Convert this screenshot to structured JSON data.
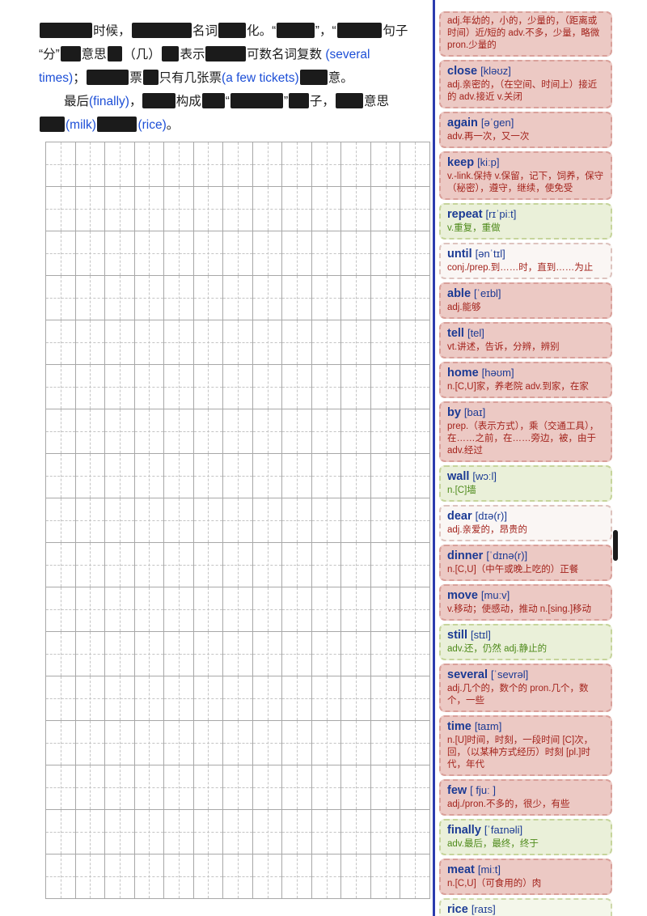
{
  "left": {
    "paragraph_lines": [
      [
        {
          "w": 4.2
        },
        {
          "t": "时候，"
        },
        {
          "w": 4.8
        },
        {
          "t": "名词"
        },
        {
          "w": 2.2
        },
        {
          "t": "化。“"
        },
        {
          "w": 3.0
        },
        {
          "t": "”，“"
        },
        {
          "w": 3.6
        },
        {
          "t": "句子"
        }
      ],
      [
        {
          "t": "“分”"
        },
        {
          "w": 1.6
        },
        {
          "t": "意思"
        },
        {
          "w": 1.2
        },
        {
          "t": "（几）"
        },
        {
          "w": 1.4
        },
        {
          "t": "表示"
        },
        {
          "w": 3.2
        },
        {
          "t": "可数名词复数 "
        },
        {
          "t": "(several",
          "s": "en"
        }
      ],
      [
        {
          "t": "times)",
          "s": "en"
        },
        {
          "t": "；"
        },
        {
          "w": 3.4
        },
        {
          "t": "票"
        },
        {
          "w": 1.2
        },
        {
          "t": "只有几张票"
        },
        {
          "t": "(a few tickets)",
          "s": "en"
        },
        {
          "w": 2.2
        },
        {
          "t": "意。"
        }
      ],
      [
        {
          "t": "　　最后"
        },
        {
          "t": "(finally)",
          "s": "en"
        },
        {
          "t": "，"
        },
        {
          "w": 2.6
        },
        {
          "t": "构成"
        },
        {
          "w": 1.8
        },
        {
          "t": "“"
        },
        {
          "w": 4.2
        },
        {
          "t": "”"
        },
        {
          "w": 1.6
        },
        {
          "t": "子，"
        },
        {
          "w": 2.2
        },
        {
          "t": "意思"
        }
      ],
      [
        {
          "w": 2.0
        },
        {
          "t": "(milk)",
          "s": "en"
        },
        {
          "w": 3.2
        },
        {
          "t": "(rice)",
          "s": "en"
        },
        {
          "t": "。"
        }
      ]
    ],
    "grid": {
      "rows": 17,
      "cols": 13
    }
  },
  "vocab": {
    "cards": [
      {
        "word": "",
        "phonetic": "",
        "definition": "adj.年幼的，小的，少量的，（距离或时间）近/短的 adv.不多，少量，略微 pron.少量的",
        "theme": "pink"
      },
      {
        "word": "close",
        "phonetic": "[kləʊz]",
        "definition": "adj.亲密的，（在空间、时间上）接近的 adv.接近 v.关闭",
        "theme": "pink"
      },
      {
        "word": "again",
        "phonetic": "[əˈgen]",
        "definition": "adv.再一次，又一次",
        "theme": "pink"
      },
      {
        "word": "keep",
        "phonetic": "[kiːp]",
        "definition": "v.-link.保持 v.保留，记下，饲养，保守（秘密），遵守，继续，使免受",
        "theme": "pink"
      },
      {
        "word": "repeat",
        "phonetic": "[rɪˈpiːt]",
        "definition": "v.重复，重做",
        "theme": "green"
      },
      {
        "word": "until",
        "phonetic": "[ənˈtɪl]",
        "definition": "conj./prep.到……时，直到……为止",
        "theme": "white"
      },
      {
        "word": "able",
        "phonetic": "[ˈeɪbl]",
        "definition": "adj.能够",
        "theme": "pink"
      },
      {
        "word": "tell",
        "phonetic": "[tel]",
        "definition": "vt.讲述，告诉，分辨，辨别",
        "theme": "pink"
      },
      {
        "word": "home",
        "phonetic": "[həʊm]",
        "definition": "n.[C,U]家，养老院 adv.到家，在家",
        "theme": "pink"
      },
      {
        "word": "by",
        "phonetic": "[baɪ]",
        "definition": "prep.（表示方式），乘（交通工具），在……之前，在……旁边，被，由于 adv.经过",
        "theme": "pink"
      },
      {
        "word": "wall",
        "phonetic": "[wɔːl]",
        "definition": "n.[C]墙",
        "theme": "green"
      },
      {
        "word": "dear",
        "phonetic": "[dɪə(r)]",
        "definition": "adj.亲爱的，昂贵的",
        "theme": "white"
      },
      {
        "word": "dinner",
        "phonetic": "[ˈdɪnə(r)]",
        "definition": "n.[C,U]（中午或晚上吃的）正餐",
        "theme": "pink"
      },
      {
        "word": "move",
        "phonetic": "[muːv]",
        "definition": "v.移动；使感动，推动 n.[sing.]移动",
        "theme": "pink"
      },
      {
        "word": "still",
        "phonetic": "[stɪl]",
        "definition": "adv.还，仍然 adj.静止的",
        "theme": "green"
      },
      {
        "word": "several",
        "phonetic": "[ˈsevrəl]",
        "definition": "adj.几个的，数个的 pron.几个，数个，一些",
        "theme": "pink"
      },
      {
        "word": "time",
        "phonetic": "[taɪm]",
        "definition": "n.[U]时间，时刻，一段时间 [C]次，回，（以某种方式经历）时刻 [pl.]时代，年代",
        "theme": "pink"
      },
      {
        "word": "few",
        "phonetic": "[ fjuː ]",
        "definition": "adj./pron.不多的，很少，有些",
        "theme": "pink"
      },
      {
        "word": "finally",
        "phonetic": "[ˈfaɪnəli]",
        "definition": "adv.最后，最终，终于",
        "theme": "green"
      },
      {
        "word": "meat",
        "phonetic": "[miːt]",
        "definition": "n.[C,U]（可食用的）肉",
        "theme": "pink"
      },
      {
        "word": "rice",
        "phonetic": "[raɪs]",
        "definition": "",
        "theme": "pale-green"
      }
    ]
  },
  "colors": {
    "divider_blue": "#2b3cae",
    "word_navy": "#1b3a94",
    "definition_red": "#a3231c",
    "definition_green": "#4e8a1a",
    "english_term_blue": "#1d4fd7",
    "card_pink_bg": "#ecc9c4",
    "card_green_bg": "#eaf0d9",
    "card_white_bg": "#faf6f4",
    "redaction_black": "#1b1b1b"
  }
}
